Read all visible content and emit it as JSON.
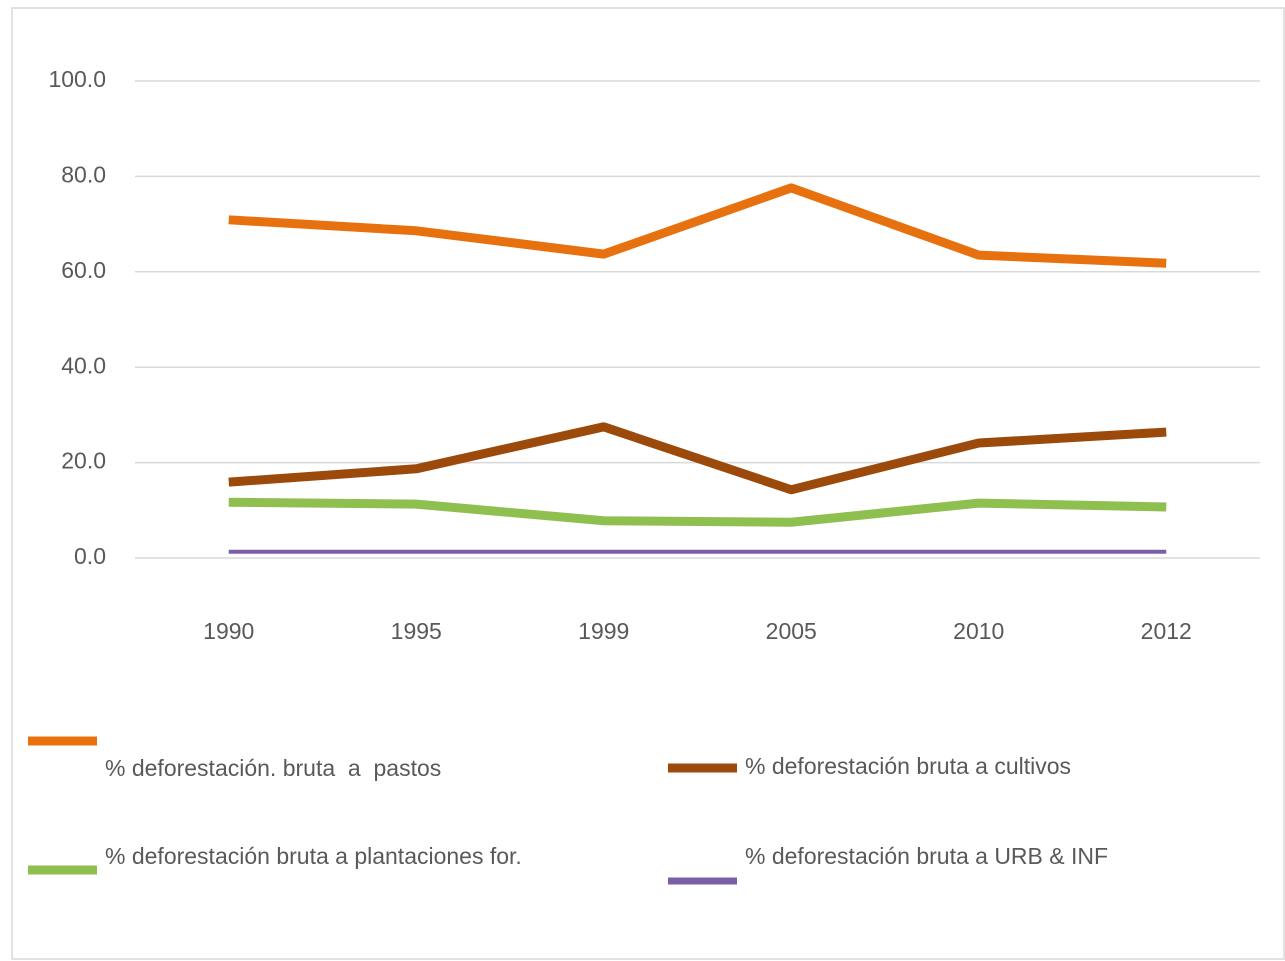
{
  "chart_data": {
    "type": "line",
    "categories": [
      "1990",
      "1995",
      "1999",
      "2005",
      "2010",
      "2012"
    ],
    "series": [
      {
        "name": "% deforestación. bruta  a  pastos",
        "color": "#e8710f",
        "values": [
          70.9,
          68.6,
          63.7,
          77.6,
          63.5,
          61.8
        ]
      },
      {
        "name": "% deforestación bruta a cultivos",
        "color": "#9c4a0c",
        "values": [
          15.9,
          18.7,
          27.5,
          14.3,
          24.1,
          26.4
        ]
      },
      {
        "name": "% deforestación bruta a plantaciones for.",
        "color": "#8fbf4f",
        "values": [
          11.7,
          11.3,
          7.8,
          7.5,
          11.5,
          10.7
        ]
      },
      {
        "name": "% deforestación bruta a URB & INF",
        "color": "#7b5ea8",
        "values": [
          1.3,
          1.3,
          1.3,
          1.3,
          1.3,
          1.3
        ]
      }
    ],
    "ylim": [
      0,
      100
    ],
    "yticks": [
      {
        "value": 0,
        "label": "0.0"
      },
      {
        "value": 20,
        "label": "20.0"
      },
      {
        "value": 40,
        "label": "40.0"
      },
      {
        "value": 60,
        "label": "60.0"
      },
      {
        "value": 80,
        "label": "80.0"
      },
      {
        "value": 100,
        "label": "100.0"
      }
    ],
    "grid": true,
    "legend": "bottom"
  }
}
